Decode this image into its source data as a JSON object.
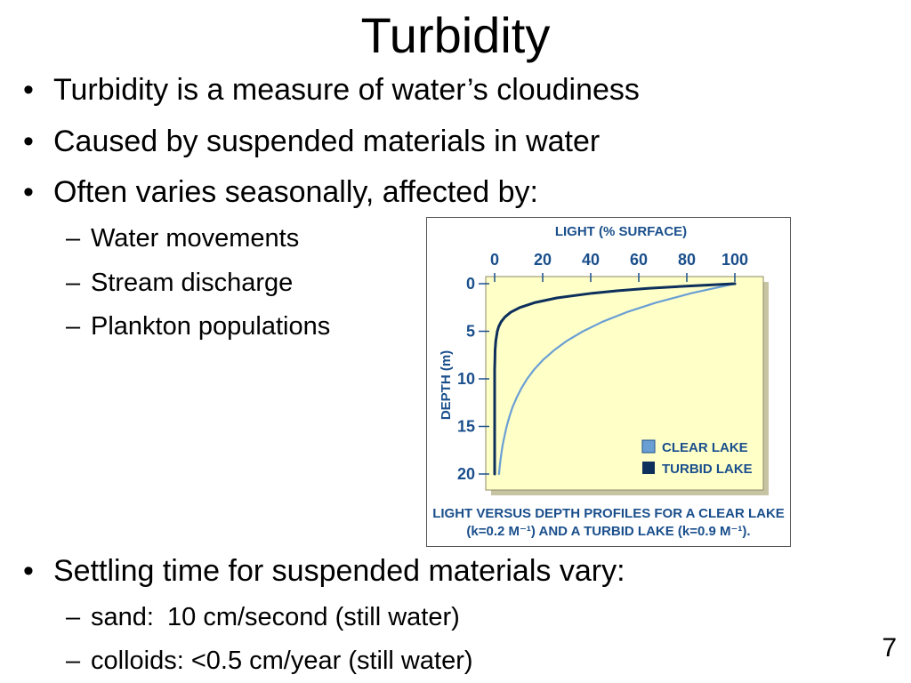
{
  "slide": {
    "title": "Turbidity",
    "page_number": "7",
    "bullets": [
      "Turbidity is a measure of water’s cloudiness",
      "Caused by suspended materials in water",
      "Often varies seasonally, affected by:"
    ],
    "sub_bullets_1": [
      "Water movements",
      "Stream discharge",
      "Plankton populations"
    ],
    "bullet_4": "Settling time for suspended materials vary:",
    "sub_bullets_2": [
      {
        "label": "sand:",
        "value": "10 cm/second (still water)"
      },
      {
        "label": "colloids:",
        "value": "<0.5 cm/year (still water)"
      }
    ],
    "bullet_char": "•",
    "dash_char": "–"
  },
  "chart_data": {
    "type": "line",
    "x_title": "LIGHT (% SURFACE)",
    "xlim": [
      0,
      100
    ],
    "x_ticks": [
      "0",
      "20",
      "40",
      "60",
      "80",
      "100"
    ],
    "y_title": "DEPTH (m)",
    "ylim": [
      0,
      20
    ],
    "y_ticks": [
      "0",
      "5",
      "10",
      "15",
      "20"
    ],
    "grid": false,
    "legend_position": "bottom-right",
    "series": [
      {
        "name": "CLEAR LAKE",
        "color": "#6a9fd4",
        "depth": [
          0,
          1,
          2,
          3,
          4,
          5,
          6,
          7,
          8,
          9,
          10,
          11,
          12,
          13,
          14,
          15,
          16,
          17,
          18,
          19,
          20
        ],
        "light": [
          100,
          81.9,
          67.0,
          54.9,
          44.9,
          36.8,
          30.1,
          24.7,
          20.2,
          16.5,
          13.5,
          11.1,
          9.1,
          7.4,
          6.1,
          5.0,
          4.1,
          3.3,
          2.7,
          2.2,
          1.8
        ]
      },
      {
        "name": "TURBID LAKE",
        "color": "#0d2f5c",
        "depth": [
          0,
          0.25,
          0.5,
          0.75,
          1,
          1.5,
          2,
          2.5,
          3,
          3.5,
          4,
          4.5,
          5,
          6,
          7,
          8,
          9,
          10,
          20
        ],
        "light": [
          100,
          79.9,
          63.8,
          50.9,
          40.7,
          25.9,
          16.5,
          10.5,
          6.7,
          4.3,
          2.7,
          1.7,
          1.1,
          0.5,
          0.2,
          0.1,
          0.0,
          0.0,
          0.0
        ]
      }
    ],
    "caption_line1": "LIGHT VERSUS DEPTH PROFILES FOR A CLEAR LAKE",
    "caption_line2": "(k=0.2 M⁻¹) AND A TURBID LAKE (k=0.9 M⁻¹)."
  }
}
